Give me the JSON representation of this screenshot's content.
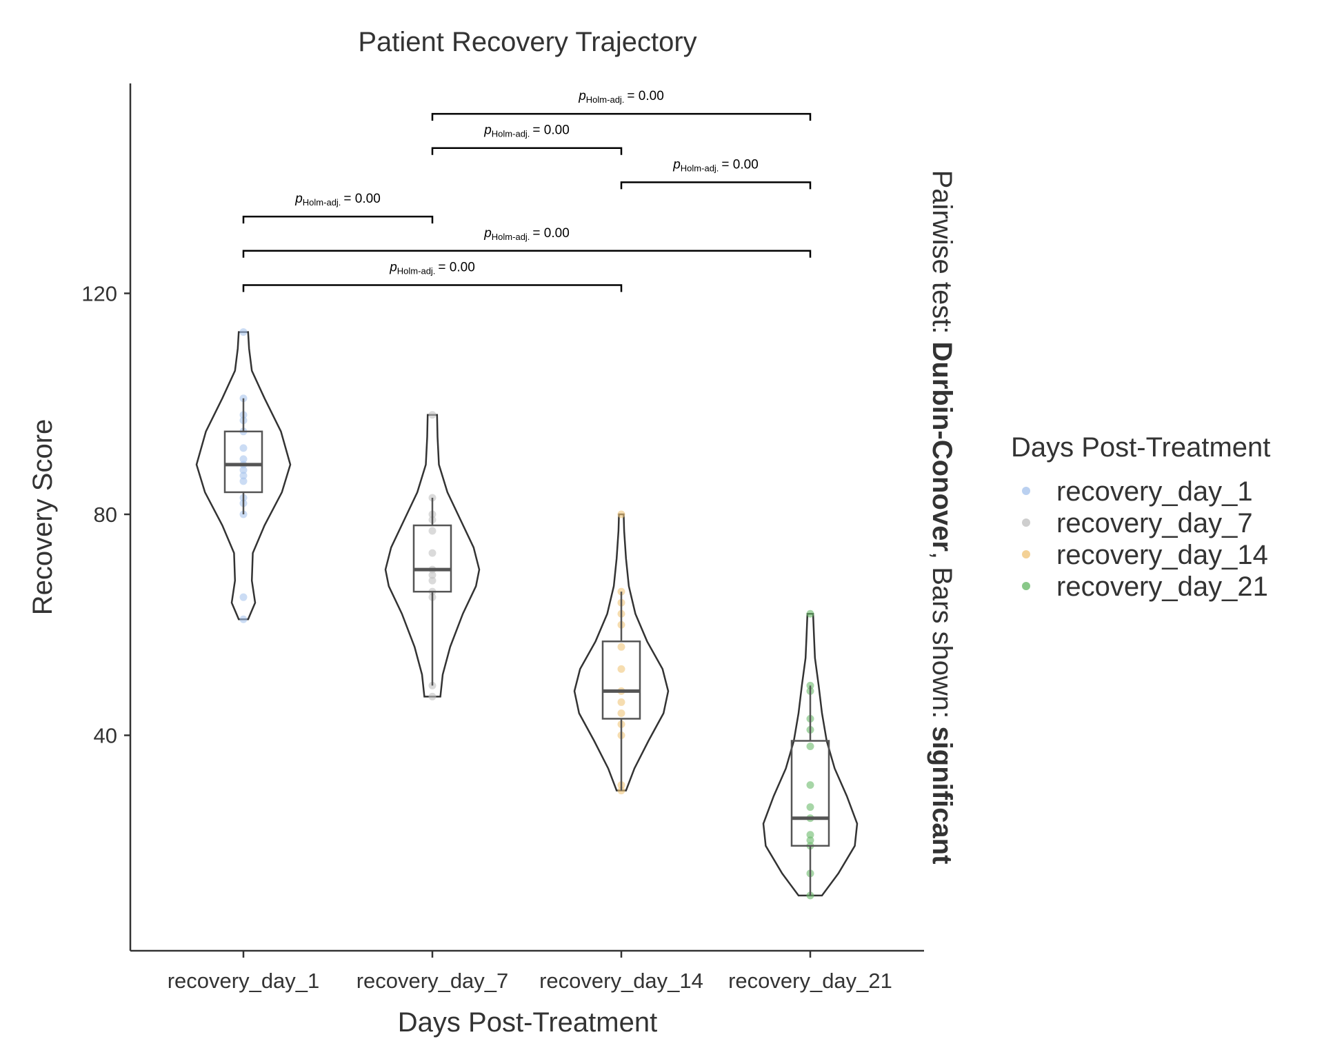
{
  "chart_data": {
    "type": "violin",
    "title": "Patient Recovery Trajectory",
    "xlabel": "Days Post-Treatment",
    "ylabel": "Recovery Score",
    "ylim": [
      1,
      158
    ],
    "yticks": [
      40,
      80,
      120
    ],
    "categories": [
      "recovery_day_1",
      "recovery_day_7",
      "recovery_day_14",
      "recovery_day_21"
    ],
    "colors": [
      "#a9c4ec",
      "#c2c2c2",
      "#f0c67c",
      "#6cba6c"
    ],
    "groups": [
      {
        "name": "recovery_day_1",
        "points": [
          113,
          101,
          98,
          97,
          95,
          92,
          90,
          89,
          88,
          87,
          86,
          83,
          82,
          80,
          65,
          61
        ],
        "box": {
          "q1": 84,
          "median": 89,
          "q3": 95,
          "whisker_low": 80,
          "whisker_high": 101
        },
        "range": [
          61,
          113
        ],
        "density": [
          [
            61,
            0.1
          ],
          [
            64,
            0.25
          ],
          [
            68,
            0.18
          ],
          [
            73,
            0.2
          ],
          [
            78,
            0.45
          ],
          [
            84,
            0.82
          ],
          [
            89,
            1.0
          ],
          [
            95,
            0.8
          ],
          [
            101,
            0.45
          ],
          [
            106,
            0.18
          ],
          [
            110,
            0.12
          ],
          [
            113,
            0.1
          ]
        ]
      },
      {
        "name": "recovery_day_7",
        "points": [
          98,
          83,
          80,
          79,
          77,
          73,
          70,
          69,
          68,
          66,
          65,
          49,
          47
        ],
        "box": {
          "q1": 66,
          "median": 70,
          "q3": 78,
          "whisker_low": 49,
          "whisker_high": 83
        },
        "range": [
          47,
          98
        ],
        "density": [
          [
            47,
            0.17
          ],
          [
            51,
            0.22
          ],
          [
            56,
            0.38
          ],
          [
            62,
            0.65
          ],
          [
            67,
            0.93
          ],
          [
            70,
            1.0
          ],
          [
            74,
            0.88
          ],
          [
            79,
            0.6
          ],
          [
            84,
            0.32
          ],
          [
            89,
            0.14
          ],
          [
            94,
            0.11
          ],
          [
            98,
            0.1
          ]
        ]
      },
      {
        "name": "recovery_day_14",
        "points": [
          80,
          66,
          64,
          62,
          60,
          56,
          52,
          48,
          46,
          44,
          42,
          40,
          31,
          30
        ],
        "box": {
          "q1": 43,
          "median": 48,
          "q3": 57,
          "whisker_low": 30,
          "whisker_high": 66
        },
        "range": [
          30,
          80
        ],
        "density": [
          [
            30,
            0.1
          ],
          [
            34,
            0.28
          ],
          [
            39,
            0.58
          ],
          [
            44,
            0.9
          ],
          [
            48,
            1.0
          ],
          [
            52,
            0.88
          ],
          [
            57,
            0.55
          ],
          [
            62,
            0.3
          ],
          [
            67,
            0.16
          ],
          [
            72,
            0.1
          ],
          [
            77,
            0.06
          ],
          [
            80,
            0.05
          ]
        ]
      },
      {
        "name": "recovery_day_21",
        "points": [
          62,
          49,
          48,
          43,
          41,
          38,
          31,
          27,
          25,
          22,
          21,
          20,
          15,
          11
        ],
        "box": {
          "q1": 20,
          "median": 25,
          "q3": 39,
          "whisker_low": 11,
          "whisker_high": 49
        },
        "range": [
          11,
          62
        ],
        "density": [
          [
            11,
            0.25
          ],
          [
            15,
            0.6
          ],
          [
            20,
            0.95
          ],
          [
            24,
            1.0
          ],
          [
            29,
            0.78
          ],
          [
            34,
            0.52
          ],
          [
            39,
            0.35
          ],
          [
            44,
            0.25
          ],
          [
            49,
            0.18
          ],
          [
            54,
            0.1
          ],
          [
            58,
            0.08
          ],
          [
            62,
            0.06
          ]
        ]
      }
    ],
    "pairwise": {
      "label_stat": "p",
      "label_sub": "Holm-adj.",
      "label_value": "= 0.00",
      "comparisons": [
        {
          "from": "recovery_day_1",
          "to": "recovery_day_14",
          "y": 121.5
        },
        {
          "from": "recovery_day_1",
          "to": "recovery_day_21",
          "y": 127.7
        },
        {
          "from": "recovery_day_1",
          "to": "recovery_day_7",
          "y": 133.9
        },
        {
          "from": "recovery_day_14",
          "to": "recovery_day_21",
          "y": 140.1
        },
        {
          "from": "recovery_day_7",
          "to": "recovery_day_14",
          "y": 146.3
        },
        {
          "from": "recovery_day_7",
          "to": "recovery_day_21",
          "y": 152.5
        }
      ]
    },
    "subtitle": {
      "prefix": "Pairwise test: ",
      "test": "Durbin-Conover",
      "middle": ", Bars shown: ",
      "shown": "significant"
    },
    "legend": {
      "title": "Days Post-Treatment",
      "position": "right",
      "items": [
        "recovery_day_1",
        "recovery_day_7",
        "recovery_day_14",
        "recovery_day_21"
      ]
    }
  }
}
